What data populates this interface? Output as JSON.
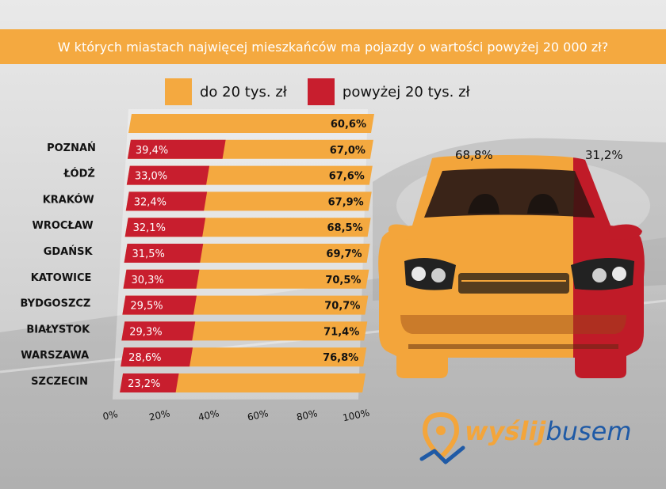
{
  "title": "W których miastach najwięcej mieszkańców ma pojazdy o wartości powyżej 20 000 zł?",
  "legend": {
    "below_label": "do 20 tys. zł",
    "above_label": "powyżej 20 tys. zł"
  },
  "colors": {
    "below": "#f4a940",
    "above": "#c81e2e",
    "header": "#f4a940"
  },
  "chart_data": {
    "type": "bar",
    "orientation": "horizontal-stacked-percent",
    "categories": [
      "POZNAŃ",
      "ŁÓDŹ",
      "KRAKÓW",
      "WROCŁAW",
      "GDAŃSK",
      "KATOWICE",
      "BYDGOSZCZ",
      "BIAŁYSTOK",
      "WARSZAWA",
      "SZCZECIN"
    ],
    "series": [
      {
        "name": "powyżej 20 tys. zł",
        "values": [
          39.4,
          33.0,
          32.4,
          32.1,
          31.5,
          30.3,
          29.5,
          29.3,
          28.6,
          23.2
        ],
        "labels": [
          "39,4%",
          "33,0%",
          "32,4%",
          "32,1%",
          "31,5%",
          "30,3%",
          "29,5%",
          "29,3%",
          "28,6%",
          "23,2%"
        ]
      },
      {
        "name": "do 20 tys. zł",
        "values": [
          60.6,
          67.0,
          67.6,
          67.9,
          68.5,
          69.7,
          70.5,
          70.7,
          71.4,
          76.8
        ],
        "labels": [
          "60,6%",
          "67,0%",
          "67,6%",
          "67,9%",
          "68,5%",
          "69,7%",
          "70,5%",
          "70,7%",
          "71,4%",
          "76,8%"
        ]
      }
    ],
    "xlim": [
      0,
      100
    ],
    "x_ticks": [
      "0%",
      "20%",
      "40%",
      "60%",
      "80%",
      "100%"
    ],
    "x_tick_values": [
      0,
      20,
      40,
      60,
      80,
      100
    ]
  },
  "car": {
    "below_pct": 68.8,
    "above_pct": 31.2,
    "below_label": "68,8%",
    "above_label": "31,2%"
  },
  "logo": {
    "part1": "wyślij",
    "part2": "busem"
  }
}
